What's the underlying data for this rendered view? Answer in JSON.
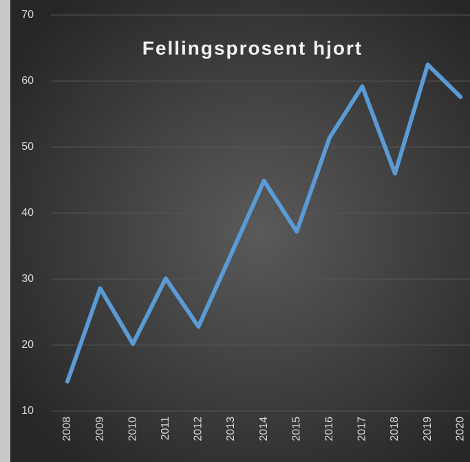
{
  "chart_data": {
    "type": "line",
    "title": "Fellingsprosent hjort",
    "categories": [
      "2008",
      "2009",
      "2010",
      "2011",
      "2012",
      "2013",
      "2014",
      "2015",
      "2016",
      "2017",
      "2018",
      "2019",
      "2020"
    ],
    "values": [
      14.5,
      28.6,
      20.2,
      30.1,
      22.8,
      33.8,
      44.9,
      37.2,
      51.4,
      59.2,
      46.0,
      62.5,
      57.6
    ],
    "color": "#5b9bd5",
    "ylim": [
      10,
      70
    ],
    "yticks": [
      10,
      20,
      30,
      40,
      50,
      60,
      70
    ],
    "grid": true
  }
}
